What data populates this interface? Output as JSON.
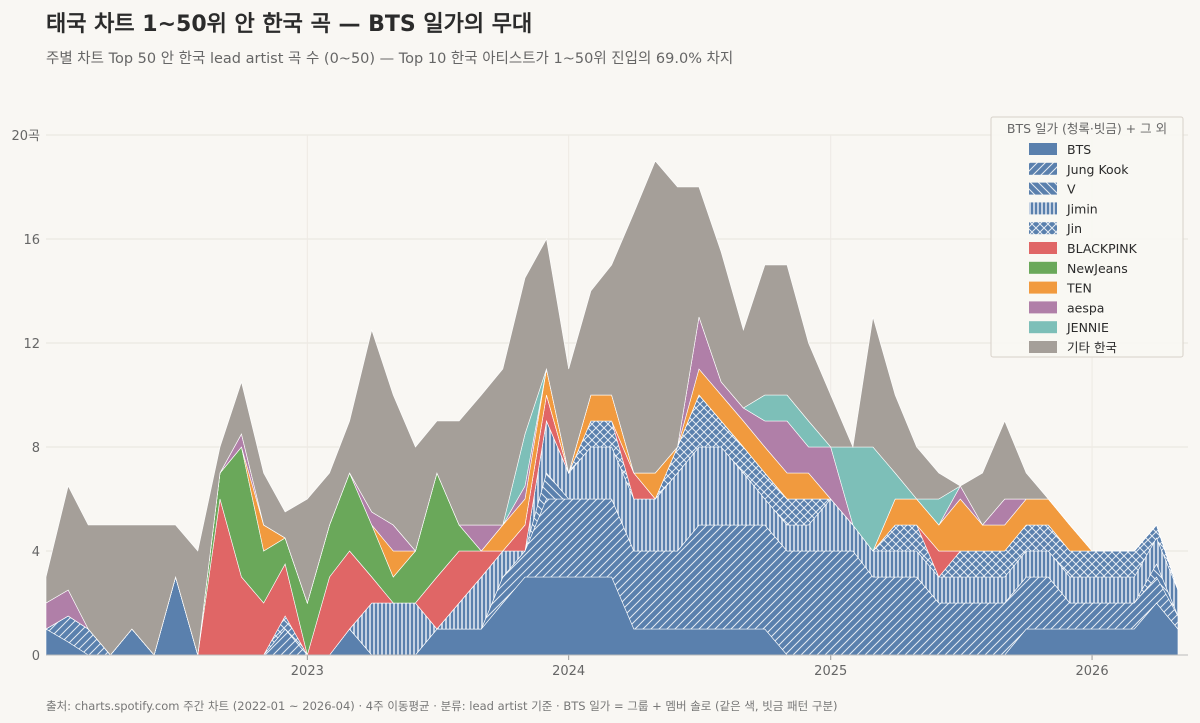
{
  "title": "태국 차트 1~50위 안 한국 곡 — BTS 일가의 무대",
  "subtitle": "주별 차트 Top 50 안 한국 lead artist 곡 수 (0~50) — Top 10 한국 아티스트가 1~50위 진입의 69.0% 차지",
  "source": "출처: charts.spotify.com 주간 차트 (2022-01 ~ 2026-04)  ·  4주 이동평균  ·  분류: lead artist 기준  ·  BTS 일가 = 그룹 + 멤버 솔로 (같은 색, 빗금 패턴 구분)",
  "chart_data": {
    "type": "area",
    "stacked": true,
    "x_dates": [
      "2022-01-01",
      "2022-02-01",
      "2022-03-01",
      "2022-04-01",
      "2022-05-01",
      "2022-06-01",
      "2022-07-01",
      "2022-08-01",
      "2022-09-01",
      "2022-10-01",
      "2022-11-01",
      "2022-12-01",
      "2023-01-01",
      "2023-02-01",
      "2023-03-01",
      "2023-04-01",
      "2023-05-01",
      "2023-06-01",
      "2023-07-01",
      "2023-08-01",
      "2023-09-01",
      "2023-10-01",
      "2023-11-01",
      "2023-12-01",
      "2024-01-01",
      "2024-02-01",
      "2024-03-01",
      "2024-04-01",
      "2024-05-01",
      "2024-06-01",
      "2024-07-01",
      "2024-08-01",
      "2024-09-01",
      "2024-10-01",
      "2024-11-01",
      "2024-12-01",
      "2025-01-01",
      "2025-02-01",
      "2025-03-01",
      "2025-04-01",
      "2025-05-01",
      "2025-06-01",
      "2025-07-01",
      "2025-08-01",
      "2025-09-01",
      "2025-10-01",
      "2025-11-01",
      "2025-12-01",
      "2026-01-01",
      "2026-02-01",
      "2026-03-01",
      "2026-04-01",
      "2026-05-01"
    ],
    "xlim": [
      "2022-01-01",
      "2026-05-15"
    ],
    "x_ticks": [
      "2023",
      "2024",
      "2025",
      "2026"
    ],
    "x_tick_dates": [
      "2023-01-01",
      "2024-01-01",
      "2025-01-01",
      "2026-01-01"
    ],
    "ylim": [
      0,
      20
    ],
    "y_ticks": [
      0,
      4,
      8,
      12,
      16,
      20
    ],
    "y_tick_labels": [
      "0",
      "4",
      "8",
      "12",
      "16",
      "20곡"
    ],
    "grid": true,
    "legend_title": "BTS 일가 (청록·빗금) + 그 외",
    "legend_position": "top-right",
    "series": [
      {
        "name": "BTS",
        "color": "#5a80ad",
        "pattern": "solid",
        "values": [
          1,
          0.5,
          0,
          0,
          1,
          0,
          3,
          0,
          0,
          0,
          0,
          0,
          0,
          0,
          1,
          0,
          0,
          0,
          1,
          1,
          1,
          2,
          3,
          3,
          3,
          3,
          3,
          1,
          1,
          1,
          1,
          1,
          1,
          1,
          0,
          0,
          0,
          0,
          0,
          0,
          0,
          0,
          0,
          0,
          0,
          1,
          1,
          1,
          1,
          1,
          1,
          2,
          1
        ]
      },
      {
        "name": "Jung Kook",
        "color": "#5a80ad",
        "pattern": "diagonal",
        "values": [
          0,
          1,
          1,
          0,
          0,
          0,
          0,
          0,
          0,
          0,
          0,
          1,
          0,
          0,
          0,
          0,
          0,
          0,
          0,
          0,
          0,
          1,
          1,
          3,
          3,
          3,
          3,
          3,
          3,
          3,
          4,
          4,
          4,
          4,
          4,
          4,
          4,
          4,
          3,
          3,
          3,
          2,
          2,
          2,
          2,
          2,
          2,
          1,
          1,
          1,
          1,
          1,
          0.5
        ]
      },
      {
        "name": "V",
        "color": "#5a80ad",
        "pattern": "back-diagonal",
        "values": [
          0,
          0,
          0,
          0,
          0,
          0,
          0,
          0,
          0,
          0,
          0,
          0,
          0,
          0,
          0,
          0,
          0,
          0,
          0,
          0,
          0,
          0,
          0,
          1,
          0,
          0,
          0,
          0,
          0,
          0,
          0,
          0,
          0,
          0,
          0,
          0,
          0,
          0,
          0,
          0,
          0,
          0,
          0,
          0,
          0,
          0,
          0,
          0,
          0,
          0,
          0,
          0.5,
          0
        ]
      },
      {
        "name": "Jimin",
        "color": "#5a80ad",
        "pattern": "vertical",
        "values": [
          0,
          0,
          0,
          0,
          0,
          0,
          0,
          0,
          0,
          0,
          0,
          0,
          0,
          0,
          0,
          2,
          2,
          2,
          0,
          1,
          2,
          1,
          0,
          2,
          1,
          2,
          2,
          2,
          2,
          3,
          3,
          3,
          2,
          1,
          1,
          1,
          2,
          1,
          1,
          1,
          1,
          1,
          1,
          1,
          1,
          1,
          1,
          1,
          1,
          1,
          1,
          1,
          1
        ]
      },
      {
        "name": "Jin",
        "color": "#5a80ad",
        "pattern": "crosshatch",
        "values": [
          0,
          0,
          0,
          0,
          0,
          0,
          0,
          0,
          0,
          0,
          0,
          0.5,
          0,
          0,
          0,
          0,
          0,
          0,
          0,
          0,
          0,
          0,
          0,
          0,
          0,
          1,
          1,
          0,
          0,
          1,
          2,
          1,
          1,
          1,
          1,
          1,
          0,
          0,
          0,
          1,
          1,
          0,
          1,
          1,
          1,
          1,
          1,
          1,
          1,
          1,
          1,
          0.5,
          0
        ]
      },
      {
        "name": "BLACKPINK",
        "color": "#e06666",
        "pattern": "solid",
        "values": [
          0,
          0,
          0,
          0,
          0,
          0,
          0,
          0,
          6,
          3,
          2,
          2,
          0,
          3,
          3,
          1,
          0,
          0,
          2,
          2,
          1,
          0,
          1,
          1,
          0,
          0,
          0,
          1,
          0,
          0,
          0,
          0,
          0,
          0,
          0,
          0,
          0,
          0,
          0,
          0,
          0,
          1,
          0,
          0,
          0,
          0,
          0,
          0,
          0,
          0,
          0,
          0,
          0
        ]
      },
      {
        "name": "NewJeans",
        "color": "#6aa85a",
        "pattern": "solid",
        "values": [
          0,
          0,
          0,
          0,
          0,
          0,
          0,
          0,
          1,
          5,
          2,
          1,
          2,
          2,
          3,
          2,
          1,
          2,
          4,
          1,
          0,
          0,
          0,
          0,
          0,
          0,
          0,
          0,
          0,
          0,
          0,
          0,
          0,
          0,
          0,
          0,
          0,
          0,
          0,
          0,
          0,
          0,
          0,
          0,
          0,
          0,
          0,
          0,
          0,
          0,
          0,
          0,
          0
        ]
      },
      {
        "name": "TEN",
        "color": "#f19a3e",
        "pattern": "solid",
        "values": [
          0,
          0,
          0,
          0,
          0,
          0,
          0,
          0,
          0,
          0,
          1,
          0,
          0,
          0,
          0,
          0,
          1,
          0,
          0,
          0,
          0,
          1,
          1,
          1,
          0,
          1,
          1,
          0,
          1,
          0,
          1,
          1,
          1,
          1,
          1,
          1,
          0,
          0,
          0,
          1,
          1,
          1,
          2,
          1,
          1,
          1,
          1,
          1,
          0,
          0,
          0,
          0,
          0
        ]
      },
      {
        "name": "aespa",
        "color": "#b07fa8",
        "pattern": "solid",
        "values": [
          1,
          1,
          0,
          0,
          0,
          0,
          0,
          0,
          0,
          0.5,
          0,
          0,
          0,
          0,
          0,
          0.5,
          1,
          0,
          0,
          0,
          1,
          0,
          0.5,
          0,
          0,
          0,
          0,
          0,
          0,
          0,
          2,
          0.5,
          0.5,
          1,
          2,
          1,
          2,
          0,
          0,
          0,
          0,
          0,
          0.5,
          0,
          1,
          0,
          0,
          0,
          0,
          0,
          0,
          0,
          0
        ]
      },
      {
        "name": "JENNIE",
        "color": "#7dbfb8",
        "pattern": "solid",
        "values": [
          0,
          0,
          0,
          0,
          0,
          0,
          0,
          0,
          0,
          0,
          0,
          0,
          0,
          0,
          0,
          0,
          0,
          0,
          0,
          0,
          0,
          0,
          2,
          0,
          0,
          0,
          0,
          0,
          0,
          0,
          0,
          0,
          0,
          1,
          1,
          1,
          0,
          3,
          4,
          1,
          0,
          1,
          0,
          0,
          0,
          0,
          0,
          0,
          0,
          0,
          0,
          0,
          0
        ]
      },
      {
        "name": "기타 한국",
        "color": "#a59f99",
        "pattern": "solid",
        "values": [
          1,
          4,
          4,
          5,
          4,
          5,
          2,
          4,
          1,
          2,
          2,
          1,
          4,
          2,
          2,
          7,
          5,
          4,
          2,
          4,
          5,
          6,
          6,
          5,
          4,
          4,
          5,
          10,
          12,
          10,
          5,
          5,
          3,
          5,
          5,
          3,
          2,
          0,
          5,
          3,
          2,
          1,
          0,
          2,
          3,
          1,
          0,
          0,
          0,
          0,
          0,
          0,
          0
        ]
      }
    ]
  }
}
